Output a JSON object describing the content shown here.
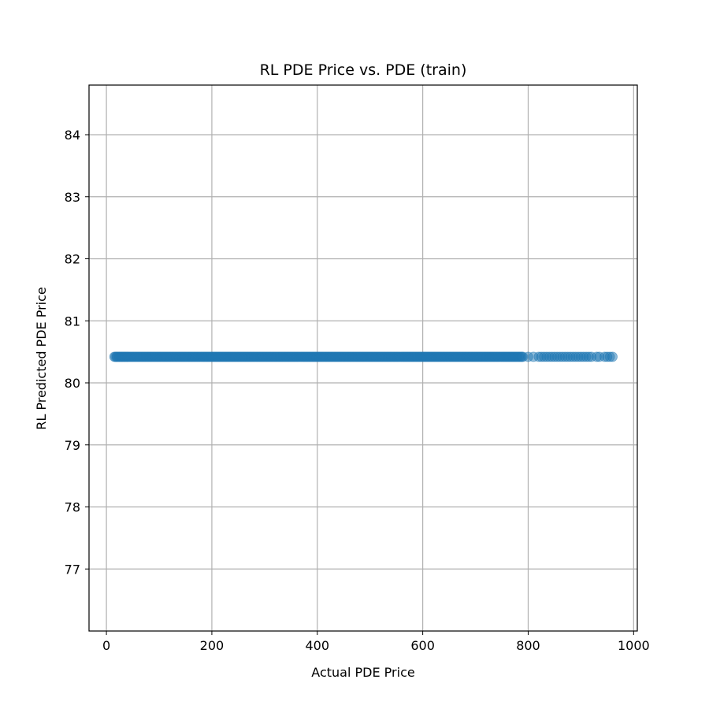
{
  "chart_data": {
    "type": "scatter",
    "title": "RL PDE Price vs. PDE (train)",
    "xlabel": "Actual PDE Price",
    "ylabel": "RL Predicted PDE Price",
    "xlim": [
      -33,
      1007
    ],
    "ylim": [
      76.0,
      84.8
    ],
    "xticks": [
      0,
      200,
      400,
      600,
      800,
      1000
    ],
    "yticks": [
      77,
      78,
      79,
      80,
      81,
      82,
      83,
      84
    ],
    "xtick_labels": [
      "0",
      "200",
      "400",
      "600",
      "800",
      "1000"
    ],
    "ytick_labels": [
      "77",
      "78",
      "79",
      "80",
      "81",
      "82",
      "83",
      "84"
    ],
    "grid": true,
    "series": [
      {
        "color": "#1f77b4",
        "alpha": 0.5,
        "y_constant": 80.42,
        "x": [
          15,
          20,
          25,
          30,
          35,
          40,
          50,
          60,
          70,
          80,
          90,
          100,
          120,
          140,
          160,
          180,
          200,
          220,
          240,
          260,
          280,
          300,
          320,
          340,
          360,
          380,
          400,
          420,
          440,
          460,
          480,
          500,
          520,
          540,
          560,
          580,
          600,
          620,
          640,
          660,
          680,
          700,
          720,
          740,
          760,
          780,
          790,
          800,
          810,
          820,
          825,
          830,
          835,
          840,
          845,
          850,
          855,
          860,
          865,
          870,
          875,
          880,
          885,
          890,
          895,
          900,
          905,
          910,
          915,
          920,
          930,
          935,
          945,
          950,
          955,
          960
        ]
      }
    ]
  }
}
